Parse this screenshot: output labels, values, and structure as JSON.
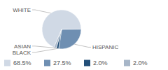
{
  "chart_data": {
    "type": "pie",
    "categories": [
      "WHITE",
      "HISPANIC",
      "BLACK",
      "ASIAN"
    ],
    "values": [
      68.5,
      27.5,
      2.0,
      2.0
    ],
    "value_labels": [
      "68.5%",
      "27.5%",
      "2.0%",
      "2.0%"
    ],
    "colors": [
      "#d0d9e5",
      "#6f8fb2",
      "#234f78",
      "#a7b6c8"
    ],
    "legend": "bottom"
  }
}
